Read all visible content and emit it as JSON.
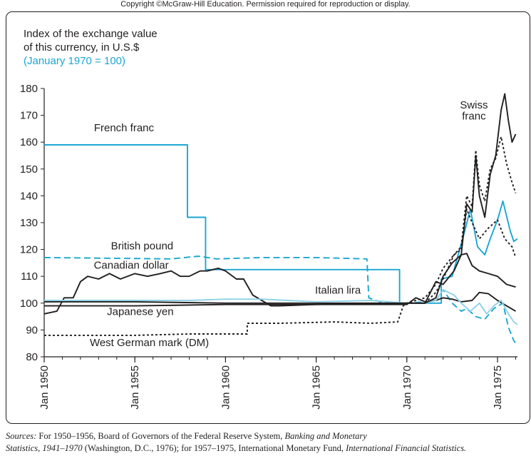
{
  "copyright": "Copyright ©McGraw-Hill Education. Permission required for reproduction or display.",
  "chart_data": {
    "type": "line",
    "ylabel_lines": [
      "Index of the exchange value",
      "of this currency, in U.S.$",
      "(January 1970 = 100)"
    ],
    "xlabel": "",
    "xlim": [
      1950,
      1976.1
    ],
    "ylim": [
      80,
      180
    ],
    "x_ticks": [
      {
        "value": 1950,
        "label": "Jan 1950"
      },
      {
        "value": 1955,
        "label": "Jan 1955"
      },
      {
        "value": 1960,
        "label": "Jan 1960"
      },
      {
        "value": 1965,
        "label": "Jan 1965"
      },
      {
        "value": 1970,
        "label": "Jan 1970"
      },
      {
        "value": 1975,
        "label": "Jan 1975"
      }
    ],
    "y_ticks": [
      80,
      90,
      100,
      110,
      120,
      130,
      140,
      150,
      160,
      170,
      180
    ],
    "grid": false,
    "colors": {
      "blue": "#1ba7d2",
      "light_blue": "#8fd2e6",
      "black": "#231f20"
    },
    "series": [
      {
        "name": "French franc",
        "color": "#1ba7d2",
        "dash": "",
        "points": [
          [
            1950,
            159
          ],
          [
            1957.9,
            159
          ],
          [
            1957.9,
            132
          ],
          [
            1958.9,
            132
          ],
          [
            1958.9,
            112.5
          ],
          [
            1969.6,
            112.5
          ],
          [
            1969.6,
            100
          ],
          [
            1971.9,
            100
          ],
          [
            1971.9,
            109
          ],
          [
            1972.5,
            110
          ],
          [
            1973.2,
            127
          ],
          [
            1973.5,
            135
          ],
          [
            1973.9,
            121
          ],
          [
            1974.3,
            118
          ],
          [
            1974.6,
            124
          ],
          [
            1975,
            131
          ],
          [
            1975.3,
            138
          ],
          [
            1975.7,
            127
          ],
          [
            1975.9,
            123
          ],
          [
            1976.1,
            124
          ]
        ]
      },
      {
        "name": "British pound",
        "color": "#1ba7d2",
        "dash": "9,5",
        "points": [
          [
            1950,
            117
          ],
          [
            1957,
            116.5
          ],
          [
            1958.5,
            117.5
          ],
          [
            1959.5,
            116.5
          ],
          [
            1962,
            117
          ],
          [
            1965,
            117
          ],
          [
            1967.8,
            116.5
          ],
          [
            1967.9,
            102
          ],
          [
            1968.5,
            100.5
          ],
          [
            1970,
            100
          ],
          [
            1971,
            100.5
          ],
          [
            1971.6,
            101
          ],
          [
            1972,
            105
          ],
          [
            1972.5,
            100
          ],
          [
            1973,
            97
          ],
          [
            1973.3,
            98
          ],
          [
            1973.8,
            95
          ],
          [
            1974.3,
            94
          ],
          [
            1974.8,
            98
          ],
          [
            1975.3,
            100
          ],
          [
            1975.6,
            91
          ],
          [
            1975.9,
            86
          ],
          [
            1976,
            85
          ]
        ]
      },
      {
        "name": "Canadian dollar",
        "color": "#231f20",
        "dash": "",
        "points": [
          [
            1950,
            96
          ],
          [
            1950.7,
            97
          ],
          [
            1951.1,
            102
          ],
          [
            1951.6,
            102
          ],
          [
            1952,
            108
          ],
          [
            1952.4,
            110
          ],
          [
            1953,
            109
          ],
          [
            1953.6,
            111
          ],
          [
            1954.2,
            109
          ],
          [
            1955,
            111
          ],
          [
            1955.7,
            110
          ],
          [
            1956.4,
            111
          ],
          [
            1957,
            112
          ],
          [
            1957.5,
            110
          ],
          [
            1958,
            110
          ],
          [
            1958.6,
            112
          ],
          [
            1959,
            112
          ],
          [
            1959.6,
            113
          ],
          [
            1960,
            112
          ],
          [
            1960.6,
            109
          ],
          [
            1961,
            109
          ],
          [
            1961.5,
            103
          ],
          [
            1962,
            101
          ],
          [
            1962.5,
            99
          ],
          [
            1963,
            99
          ],
          [
            1965,
            99.5
          ],
          [
            1968,
            99.5
          ],
          [
            1970,
            99.5
          ],
          [
            1970.5,
            102
          ],
          [
            1971,
            100.5
          ],
          [
            1971.6,
            101
          ],
          [
            1972,
            102
          ],
          [
            1972.5,
            101.5
          ],
          [
            1973,
            100.5
          ],
          [
            1973.6,
            101
          ],
          [
            1974,
            104
          ],
          [
            1974.5,
            103.5
          ],
          [
            1975,
            101
          ],
          [
            1975.5,
            99
          ],
          [
            1976,
            97
          ]
        ]
      },
      {
        "name": "Italian lira",
        "color": "#8fd2e6",
        "dash": "",
        "points": [
          [
            1950,
            101
          ],
          [
            1958,
            101
          ],
          [
            1960,
            101.5
          ],
          [
            1962,
            101.5
          ],
          [
            1965,
            100.5
          ],
          [
            1968,
            101
          ],
          [
            1970,
            100
          ],
          [
            1971,
            100
          ],
          [
            1971.6,
            101
          ],
          [
            1972,
            105
          ],
          [
            1972.6,
            103
          ],
          [
            1973,
            100
          ],
          [
            1973.5,
            97
          ],
          [
            1974,
            100
          ],
          [
            1974.4,
            96
          ],
          [
            1974.8,
            99
          ],
          [
            1975.2,
            101
          ],
          [
            1975.6,
            96
          ],
          [
            1975.9,
            93
          ],
          [
            1976.1,
            92
          ]
        ]
      },
      {
        "name": "Japanese yen",
        "color": "#231f20",
        "dash": "",
        "points": [
          [
            1950,
            99
          ],
          [
            1955,
            99
          ],
          [
            1960,
            99.5
          ],
          [
            1965,
            99.5
          ],
          [
            1970,
            100
          ],
          [
            1971,
            100
          ],
          [
            1971.6,
            102
          ],
          [
            1972,
            110
          ],
          [
            1972.5,
            115
          ],
          [
            1973,
            118
          ],
          [
            1973.3,
            118.5
          ],
          [
            1973.6,
            114
          ],
          [
            1974,
            112
          ],
          [
            1974.5,
            111
          ],
          [
            1975,
            110
          ],
          [
            1975.5,
            107
          ],
          [
            1976,
            106
          ]
        ]
      },
      {
        "name": "West German mark (DM)",
        "color": "#231f20",
        "dash": "3,3",
        "points": [
          [
            1950,
            88
          ],
          [
            1955,
            88
          ],
          [
            1958,
            88.5
          ],
          [
            1961.2,
            88.5
          ],
          [
            1961.2,
            92.5
          ],
          [
            1963,
            92.5
          ],
          [
            1966,
            93
          ],
          [
            1968,
            92.5
          ],
          [
            1969.5,
            93
          ],
          [
            1969.8,
            99
          ],
          [
            1970,
            100
          ],
          [
            1971,
            102
          ],
          [
            1971.6,
            107
          ],
          [
            1972,
            113
          ],
          [
            1972.6,
            118
          ],
          [
            1973,
            120
          ],
          [
            1973.3,
            135
          ],
          [
            1973.6,
            130
          ],
          [
            1974,
            124
          ],
          [
            1974.5,
            128
          ],
          [
            1975,
            131
          ],
          [
            1975.4,
            124
          ],
          [
            1975.8,
            121
          ],
          [
            1976,
            117
          ]
        ]
      },
      {
        "name": "Swiss franc",
        "color": "#231f20",
        "dash": "",
        "points": [
          [
            1950,
            100.5
          ],
          [
            1955,
            100.5
          ],
          [
            1960,
            100
          ],
          [
            1965,
            100
          ],
          [
            1970,
            100
          ],
          [
            1971,
            100
          ],
          [
            1971.6,
            108
          ],
          [
            1972,
            107
          ],
          [
            1972.6,
            112
          ],
          [
            1973,
            118
          ],
          [
            1973.3,
            137
          ],
          [
            1973.6,
            134
          ],
          [
            1973.8,
            155
          ],
          [
            1974,
            140
          ],
          [
            1974.3,
            132
          ],
          [
            1974.6,
            148
          ],
          [
            1974.9,
            155
          ],
          [
            1975.2,
            172
          ],
          [
            1975.4,
            178
          ],
          [
            1975.6,
            168
          ],
          [
            1975.8,
            160
          ],
          [
            1976,
            163
          ]
        ]
      },
      {
        "name": "",
        "color": "#231f20",
        "dash": "3,3",
        "points": [
          [
            1971,
            100
          ],
          [
            1971.6,
            104
          ],
          [
            1972,
            109
          ],
          [
            1972.6,
            118
          ],
          [
            1973,
            121
          ],
          [
            1973.3,
            140
          ],
          [
            1973.6,
            136
          ],
          [
            1973.8,
            157
          ],
          [
            1974,
            144
          ],
          [
            1974.3,
            138
          ],
          [
            1974.6,
            150
          ],
          [
            1974.9,
            154
          ],
          [
            1975.2,
            162
          ],
          [
            1975.5,
            152
          ],
          [
            1975.8,
            145
          ],
          [
            1976,
            141
          ]
        ]
      }
    ],
    "annotations": [
      {
        "text": "French franc",
        "x": 1954.4,
        "y": 164
      },
      {
        "text": "British pound",
        "x": 1955.4,
        "y": 120
      },
      {
        "text": "Canadian dollar",
        "x": 1954.8,
        "y": 112.8
      },
      {
        "text": "Italian lira",
        "x": 1966.2,
        "y": 103.6
      },
      {
        "text": "Japanese yen",
        "x": 1955.3,
        "y": 95.5
      },
      {
        "text": "West German mark (DM)",
        "x": 1955.8,
        "y": 84
      },
      {
        "text": "Swiss",
        "x": 1973.7,
        "y": 172.5
      },
      {
        "text": "franc",
        "x": 1973.7,
        "y": 168.4
      }
    ]
  },
  "sources": {
    "lead": "Sources:",
    "part1": " For 1950–1956, Board of Governors of the Federal Reserve System, ",
    "title1a": "Banking and Monetary",
    "title1b": "Statistics, 1941–1970",
    "part2": " (Washington, D.C., 1976); for 1957–1975, International Monetary Fund, ",
    "title2": "International Financial Statistics.",
    "end": ""
  }
}
